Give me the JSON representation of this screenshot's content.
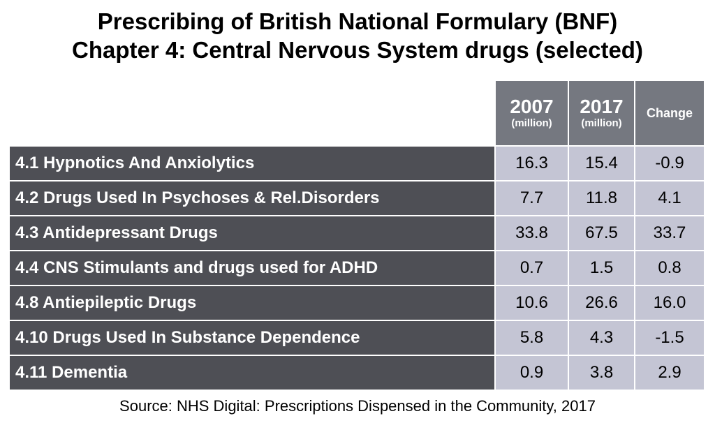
{
  "title_line1": "Prescribing of British National Formulary (BNF)",
  "title_line2": "Chapter 4: Central Nervous System drugs (selected)",
  "source": "Source: NHS Digital: Prescriptions Dispensed in the Community, 2017",
  "colors": {
    "label_bg": "#4e4f55",
    "header_bg": "#757880",
    "value_bg": "#c4c5d4"
  },
  "chart_data": {
    "type": "table",
    "columns": [
      {
        "label": "2007",
        "unit": "(million)"
      },
      {
        "label": "2017",
        "unit": "(million)"
      },
      {
        "label": "Change",
        "unit": ""
      }
    ],
    "rows": [
      {
        "label": "4.1 Hypnotics And Anxiolytics",
        "v2007": "16.3",
        "v2017": "15.4",
        "change": "-0.9"
      },
      {
        "label": "4.2 Drugs Used In Psychoses & Rel.Disorders",
        "v2007": "7.7",
        "v2017": "11.8",
        "change": "4.1"
      },
      {
        "label": "4.3 Antidepressant Drugs",
        "v2007": "33.8",
        "v2017": "67.5",
        "change": "33.7"
      },
      {
        "label": "4.4 CNS Stimulants and drugs used for ADHD",
        "v2007": "0.7",
        "v2017": "1.5",
        "change": "0.8"
      },
      {
        "label": "4.8 Antiepileptic Drugs",
        "v2007": "10.6",
        "v2017": "26.6",
        "change": "16.0"
      },
      {
        "label": "4.10 Drugs Used In Substance Dependence",
        "v2007": "5.8",
        "v2017": "4.3",
        "change": "-1.5"
      },
      {
        "label": "4.11 Dementia",
        "v2007": "0.9",
        "v2017": "3.8",
        "change": "2.9"
      }
    ]
  }
}
